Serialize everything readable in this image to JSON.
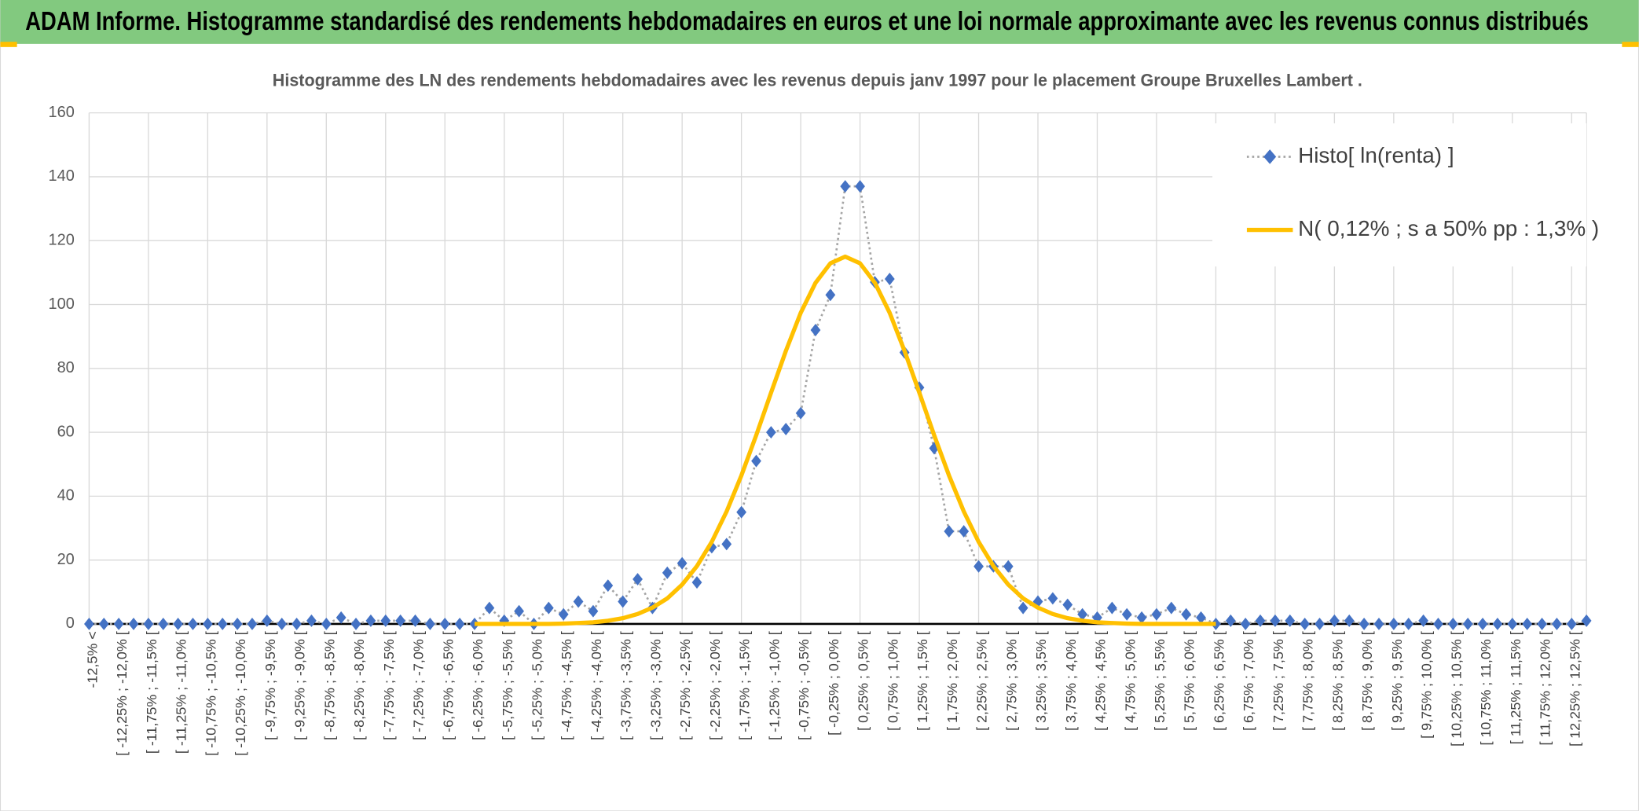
{
  "page_title": "ADAM Informe. Histogramme standardisé des rendements hebdomadaires en euros et une loi normale approximante avec les revenus connus distribués",
  "chart_data": {
    "type": "line",
    "title": "Histogramme des LN des rendements hebdomadaires avec les revenus depuis janv 1997 pour le placement Groupe Bruxelles Lambert .",
    "categories": [
      "-12,5% <",
      null,
      "[ -12,25% ; -12,0% [",
      null,
      "[ -11,75% ; -11,5% [",
      null,
      "[ -11,25% ; -11,0% [",
      null,
      "[ -10,75% ; -10,5% [",
      null,
      "[ -10,25% ; -10,0% [",
      null,
      "[ -9,75% ; -9,5% [",
      null,
      "[ -9,25% ; -9,0% [",
      null,
      "[ -8,75% ; -8,5% [",
      null,
      "[ -8,25% ; -8,0% [",
      null,
      "[ -7,75% ; -7,5% [",
      null,
      "[ -7,25% ; -7,0% [",
      null,
      "[ -6,75% ; -6,5% [",
      null,
      "[ -6,25% ; -6,0% [",
      null,
      "[ -5,75% ; -5,5% [",
      null,
      "[ -5,25% ; -5,0% [",
      null,
      "[ -4,75% ; -4,5% [",
      null,
      "[ -4,25% ; -4,0% [",
      null,
      "[ -3,75% ; -3,5% [",
      null,
      "[ -3,25% ; -3,0% [",
      null,
      "[ -2,75% ; -2,5% [",
      null,
      "[ -2,25% ; -2,0% [",
      null,
      "[ -1,75% ; -1,5% [",
      null,
      "[ -1,25% ; -1,0% [",
      null,
      "[ -0,75% ; -0,5% [",
      null,
      "[ -0,25% ; 0,0% [",
      null,
      "[ 0,25% ; 0,5% [",
      null,
      "[ 0,75% ; 1,0% [",
      null,
      "[ 1,25% ; 1,5% [",
      null,
      "[ 1,75% ; 2,0% [",
      null,
      "[ 2,25% ; 2,5% [",
      null,
      "[ 2,75% ; 3,0% [",
      null,
      "[ 3,25% ; 3,5% [",
      null,
      "[ 3,75% ; 4,0% [",
      null,
      "[ 4,25% ; 4,5% [",
      null,
      "[ 4,75% ; 5,0% [",
      null,
      "[ 5,25% ; 5,5% [",
      null,
      "[ 5,75% ; 6,0% [",
      null,
      "[ 6,25% ; 6,5% [",
      null,
      "[ 6,75% ; 7,0% [",
      null,
      "[ 7,25% ; 7,5% [",
      null,
      "[ 7,75% ; 8,0% [",
      null,
      "[ 8,25% ; 8,5% [",
      null,
      "[ 8,75% ; 9,0% [",
      null,
      "[ 9,25% ; 9,5% [",
      null,
      "[ 9,75% ; 10,0% [",
      null,
      "[ 10,25% ; 10,5% [",
      null,
      "[ 10,75% ; 11,0% [",
      null,
      "[ 11,25% ; 11,5% [",
      null,
      "[ 11,75% ; 12,0% [",
      null,
      "[ 12,25% ; 12,5% [",
      null
    ],
    "series": [
      {
        "name": "Histo[ ln(renta) ]",
        "color": "#4472c4",
        "line_color": "#a5a5a5",
        "marker": "diamond",
        "values": [
          0,
          0,
          0,
          0,
          0,
          0,
          0,
          0,
          0,
          0,
          0,
          0,
          1,
          0,
          0,
          1,
          0,
          2,
          0,
          1,
          1,
          1,
          1,
          0,
          0,
          0,
          0,
          5,
          1,
          4,
          0,
          5,
          3,
          7,
          4,
          12,
          7,
          14,
          5,
          16,
          19,
          13,
          24,
          25,
          35,
          51,
          60,
          61,
          66,
          92,
          103,
          137,
          137,
          107,
          108,
          85,
          74,
          55,
          29,
          29,
          18,
          18,
          18,
          5,
          7,
          8,
          6,
          3,
          2,
          5,
          3,
          2,
          3,
          5,
          3,
          2,
          0,
          1,
          0,
          1,
          1,
          1,
          0,
          0,
          1,
          1,
          0,
          0,
          0,
          0,
          1,
          0,
          0,
          0,
          0,
          0,
          0,
          0,
          0,
          0,
          0,
          1
        ]
      },
      {
        "name": "N( 0,12% ; s a 50% pp : 1,3% )",
        "color": "#ffc000",
        "values": [
          null,
          null,
          null,
          null,
          null,
          null,
          null,
          null,
          null,
          null,
          null,
          null,
          null,
          null,
          null,
          null,
          null,
          null,
          null,
          null,
          null,
          null,
          null,
          null,
          null,
          null,
          0,
          0,
          0,
          0,
          0,
          0,
          0.1,
          0.3,
          0.5,
          1.0,
          1.8,
          3.1,
          5.1,
          8.0,
          12.3,
          18.1,
          25.7,
          35.2,
          46.5,
          59.1,
          72.4,
          85.5,
          97.4,
          106.8,
          112.9,
          115,
          112.9,
          106.8,
          97.4,
          85.5,
          72.4,
          59.1,
          46.5,
          35.2,
          25.7,
          18.1,
          12.3,
          8.0,
          5.1,
          3.1,
          1.8,
          1.0,
          0.5,
          0.3,
          0.1,
          0,
          0,
          0,
          0,
          0,
          0,
          null,
          null,
          null,
          null,
          null,
          null,
          null,
          null,
          null,
          null,
          null,
          null,
          null,
          null,
          null,
          null,
          null,
          null,
          null,
          null,
          null,
          null,
          null,
          null,
          null
        ]
      }
    ],
    "ylim": [
      0,
      160
    ],
    "yticks": [
      0,
      20,
      40,
      60,
      80,
      100,
      120,
      140,
      160
    ],
    "grid": true,
    "legend": "top-right"
  }
}
